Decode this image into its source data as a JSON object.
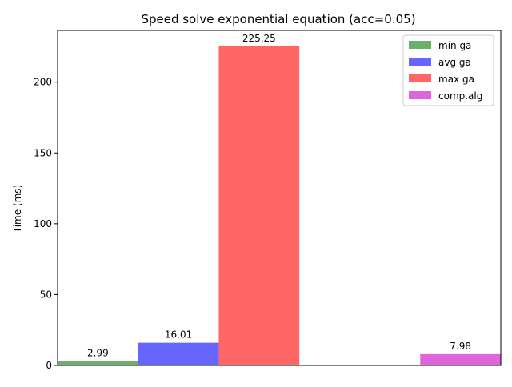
{
  "chart_data": {
    "type": "bar",
    "title": "Speed solve exponential equation (acc=0.05)",
    "xlabel": "",
    "ylabel": "Time (ms)",
    "ylim": [
      0,
      236.5
    ],
    "yticks": [
      0,
      50,
      100,
      150,
      200
    ],
    "grid": false,
    "legend_position": "top-right",
    "series": [
      {
        "name": "min ga",
        "color": "#6aaf6a",
        "value": 2.99,
        "label": "2.99",
        "x": 0.0
      },
      {
        "name": "avg ga",
        "color": "#6666ff",
        "value": 16.01,
        "label": "16.01",
        "x": 1.0
      },
      {
        "name": "max ga",
        "color": "#ff6666",
        "value": 225.25,
        "label": "225.25",
        "x": 2.0
      },
      {
        "name": "comp.alg",
        "color": "#dd66dd",
        "value": 7.98,
        "label": "7.98",
        "x": 4.5
      }
    ]
  }
}
